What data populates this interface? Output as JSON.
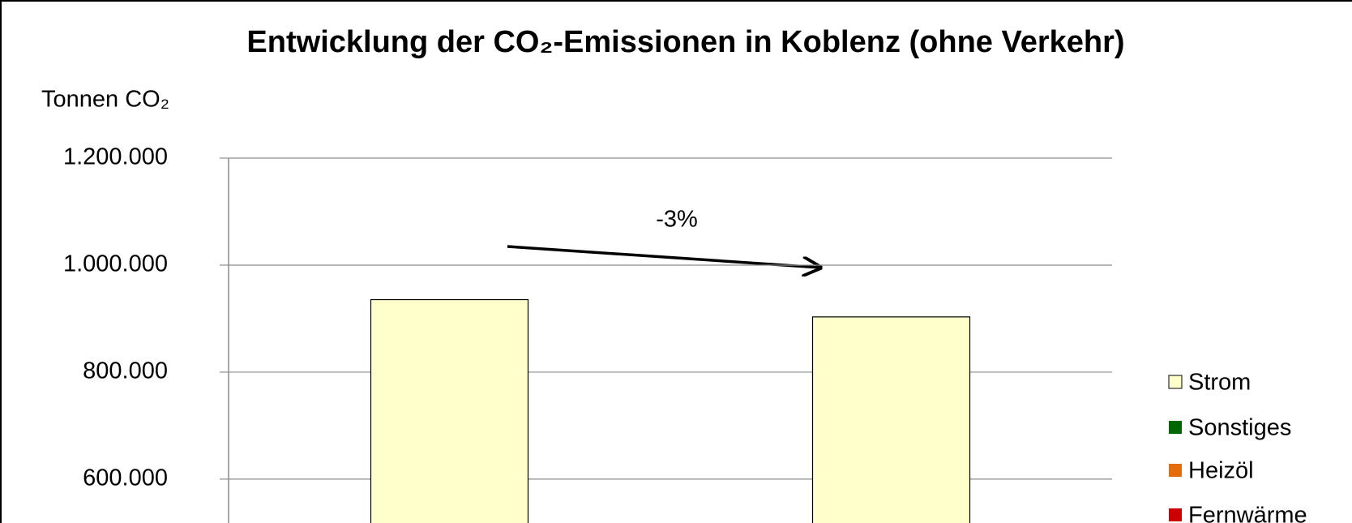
{
  "chart_data": {
    "type": "bar",
    "title": "Entwicklung der CO₂-Emissionen in Koblenz (ohne Verkehr)",
    "y_label": "Tonnen CO₂",
    "annotation": "-3%",
    "categories": [
      null,
      null
    ],
    "series": [
      {
        "name": "Strom",
        "color": "#ffffcc",
        "values": [
          935500,
          903200
        ]
      },
      {
        "name": "Sonstiges",
        "color": "#006600",
        "values": [
          null,
          null
        ]
      },
      {
        "name": "Heizöl",
        "color": "#e46c0a",
        "values": [
          null,
          null
        ]
      },
      {
        "name": "Fernwärme",
        "color": "#cc0000",
        "values": [
          null,
          null
        ]
      }
    ],
    "ylim": [
      518000,
      1200000
    ],
    "yticks": [
      {
        "value": 600000,
        "label": "600.000"
      },
      {
        "value": 800000,
        "label": "800.000"
      },
      {
        "value": 1000000,
        "label": "1.000.000"
      },
      {
        "value": 1200000,
        "label": "1.200.000"
      }
    ],
    "grid": true,
    "legend": "right"
  }
}
